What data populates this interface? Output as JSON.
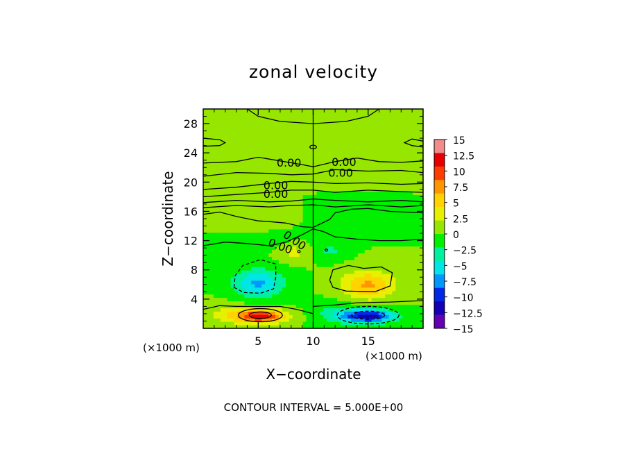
{
  "chart_data": {
    "type": "heatmap",
    "title": "zonal velocity",
    "xlabel": "X−coordinate",
    "ylabel": "Z−coordinate",
    "x_unit_label": "(×1000 m)",
    "x_unit_label_2": "(×1000 m)",
    "xlim": [
      0,
      20
    ],
    "ylim": [
      0,
      30
    ],
    "x_ticks": [
      5,
      10,
      15
    ],
    "y_ticks": [
      4,
      8,
      12,
      16,
      20,
      24,
      28
    ],
    "contour_interval_text": "CONTOUR INTERVAL = 5.000E+00",
    "contour_labels": [
      "0.00",
      "0.00",
      "0.00",
      "0.00",
      "0.00",
      "0.00",
      "0.00"
    ],
    "colorbar": {
      "levels": [
        "15",
        "12.5",
        "10",
        "7.5",
        "5",
        "2.5",
        "0",
        "−2.5",
        "−5",
        "−7.5",
        "−10",
        "−12.5",
        "−15"
      ],
      "colors": [
        "#f08c8c",
        "#e80000",
        "#ff3c00",
        "#ff9600",
        "#ffd200",
        "#e6f000",
        "#96e600",
        "#00f000",
        "#00f0a0",
        "#00e6e6",
        "#0096ff",
        "#0028e6",
        "#1400b4",
        "#6400b4"
      ]
    },
    "features": [
      {
        "x": 5.2,
        "z": 1.7,
        "value": 14,
        "sx": 2.2,
        "sz": 0.9
      },
      {
        "x": 15.0,
        "z": 1.7,
        "value": -14,
        "sx": 2.4,
        "sz": 0.9
      },
      {
        "x": 2.2,
        "z": 2.0,
        "value": 3,
        "sx": 2.0,
        "sz": 1.5
      },
      {
        "x": 12.0,
        "z": 2.2,
        "value": -3,
        "sx": 2.0,
        "sz": 1.5
      },
      {
        "x": 5.0,
        "z": 6.2,
        "value": -8,
        "sx": 2.3,
        "sz": 1.9
      },
      {
        "x": 15.0,
        "z": 6.0,
        "value": 8,
        "sx": 2.4,
        "sz": 1.9
      },
      {
        "x": 8.2,
        "z": 10.6,
        "value": 3.5,
        "sx": 1.6,
        "sz": 1.3
      },
      {
        "x": 11.5,
        "z": 10.6,
        "value": -3,
        "sx": 1.4,
        "sz": 1.2
      },
      {
        "x": 6.0,
        "z": 12.0,
        "value": -1.5,
        "sx": 3.5,
        "sz": 1.5
      },
      {
        "x": 13.5,
        "z": 14.5,
        "value": -1.5,
        "sx": 3.0,
        "sz": 1.5
      },
      {
        "x": 4.5,
        "z": 14.5,
        "value": 1.5,
        "sx": 3.0,
        "sz": 1.5
      },
      {
        "x": 10.0,
        "z": 27.0,
        "value": 1.0,
        "sx": 6.0,
        "sz": 3.0
      }
    ]
  }
}
